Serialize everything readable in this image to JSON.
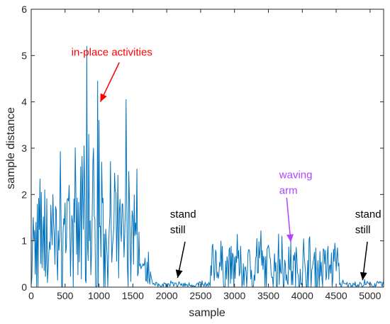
{
  "chart_data": {
    "type": "line",
    "xlabel": "sample",
    "ylabel": "sample distance",
    "xlim": [
      0,
      5200
    ],
    "ylim": [
      0,
      6
    ],
    "xticks": [
      0,
      500,
      1000,
      1500,
      2000,
      2500,
      3000,
      3500,
      4000,
      4500,
      5000
    ],
    "yticks": [
      0,
      1,
      2,
      3,
      4,
      5,
      6
    ],
    "line_color": "#0072bd",
    "grid": false,
    "box": true,
    "segments": [
      {
        "x_start": 0,
        "x_end": 1600,
        "level": 0.9,
        "spread": 1.2
      },
      {
        "x_start": 1600,
        "x_end": 1800,
        "level": 0.3,
        "spread": 0.25
      },
      {
        "x_start": 1800,
        "x_end": 2650,
        "level": 0.05,
        "spread": 0.06
      },
      {
        "x_start": 2650,
        "x_end": 4550,
        "level": 0.4,
        "spread": 0.5
      },
      {
        "x_start": 4550,
        "x_end": 5200,
        "level": 0.05,
        "spread": 0.07
      }
    ],
    "peaks": [
      {
        "x": 820,
        "y": 5.2
      },
      {
        "x": 850,
        "y": 3.3
      },
      {
        "x": 920,
        "y": 3.0
      },
      {
        "x": 975,
        "y": 4.45
      },
      {
        "x": 1000,
        "y": 3.6
      },
      {
        "x": 1040,
        "y": 2.7
      },
      {
        "x": 1400,
        "y": 4.05
      },
      {
        "x": 1440,
        "y": 2.5
      },
      {
        "x": 1560,
        "y": 2.55
      },
      {
        "x": 560,
        "y": 2.2
      },
      {
        "x": 730,
        "y": 2.6
      },
      {
        "x": 780,
        "y": 3.05
      },
      {
        "x": 150,
        "y": 2.05
      },
      {
        "x": 200,
        "y": 2.1
      },
      {
        "x": 320,
        "y": 2.0
      },
      {
        "x": 3330,
        "y": 1.05
      },
      {
        "x": 3700,
        "y": 1.1
      },
      {
        "x": 4200,
        "y": 0.85
      },
      {
        "x": 4480,
        "y": 0.95
      },
      {
        "x": 2720,
        "y": 0.8
      }
    ],
    "annotations": [
      {
        "text": "in-place activities",
        "color": "#ff0000",
        "lines": [
          "in-place activities"
        ],
        "text_at": [
          1190,
          5.0
        ],
        "arrow_from": [
          1300,
          4.85
        ],
        "arrow_to": [
          1020,
          4.0
        ]
      },
      {
        "text": "waving arm",
        "color": "#b044ff",
        "lines": [
          "waving",
          "arm"
        ],
        "text_at": [
          3660,
          2.35
        ],
        "arrow_from": [
          3770,
          1.93
        ],
        "arrow_to": [
          3830,
          0.97
        ]
      },
      {
        "text": "stand still",
        "color": "#000000",
        "lines": [
          "stand",
          "still"
        ],
        "text_at": [
          2050,
          1.5
        ],
        "arrow_from": [
          2270,
          0.98
        ],
        "arrow_to": [
          2160,
          0.2
        ]
      },
      {
        "text": "stand still",
        "color": "#000000",
        "lines": [
          "stand",
          "still"
        ],
        "text_at": [
          4780,
          1.5
        ],
        "arrow_from": [
          4960,
          0.98
        ],
        "arrow_to": [
          4890,
          0.15
        ]
      }
    ]
  }
}
